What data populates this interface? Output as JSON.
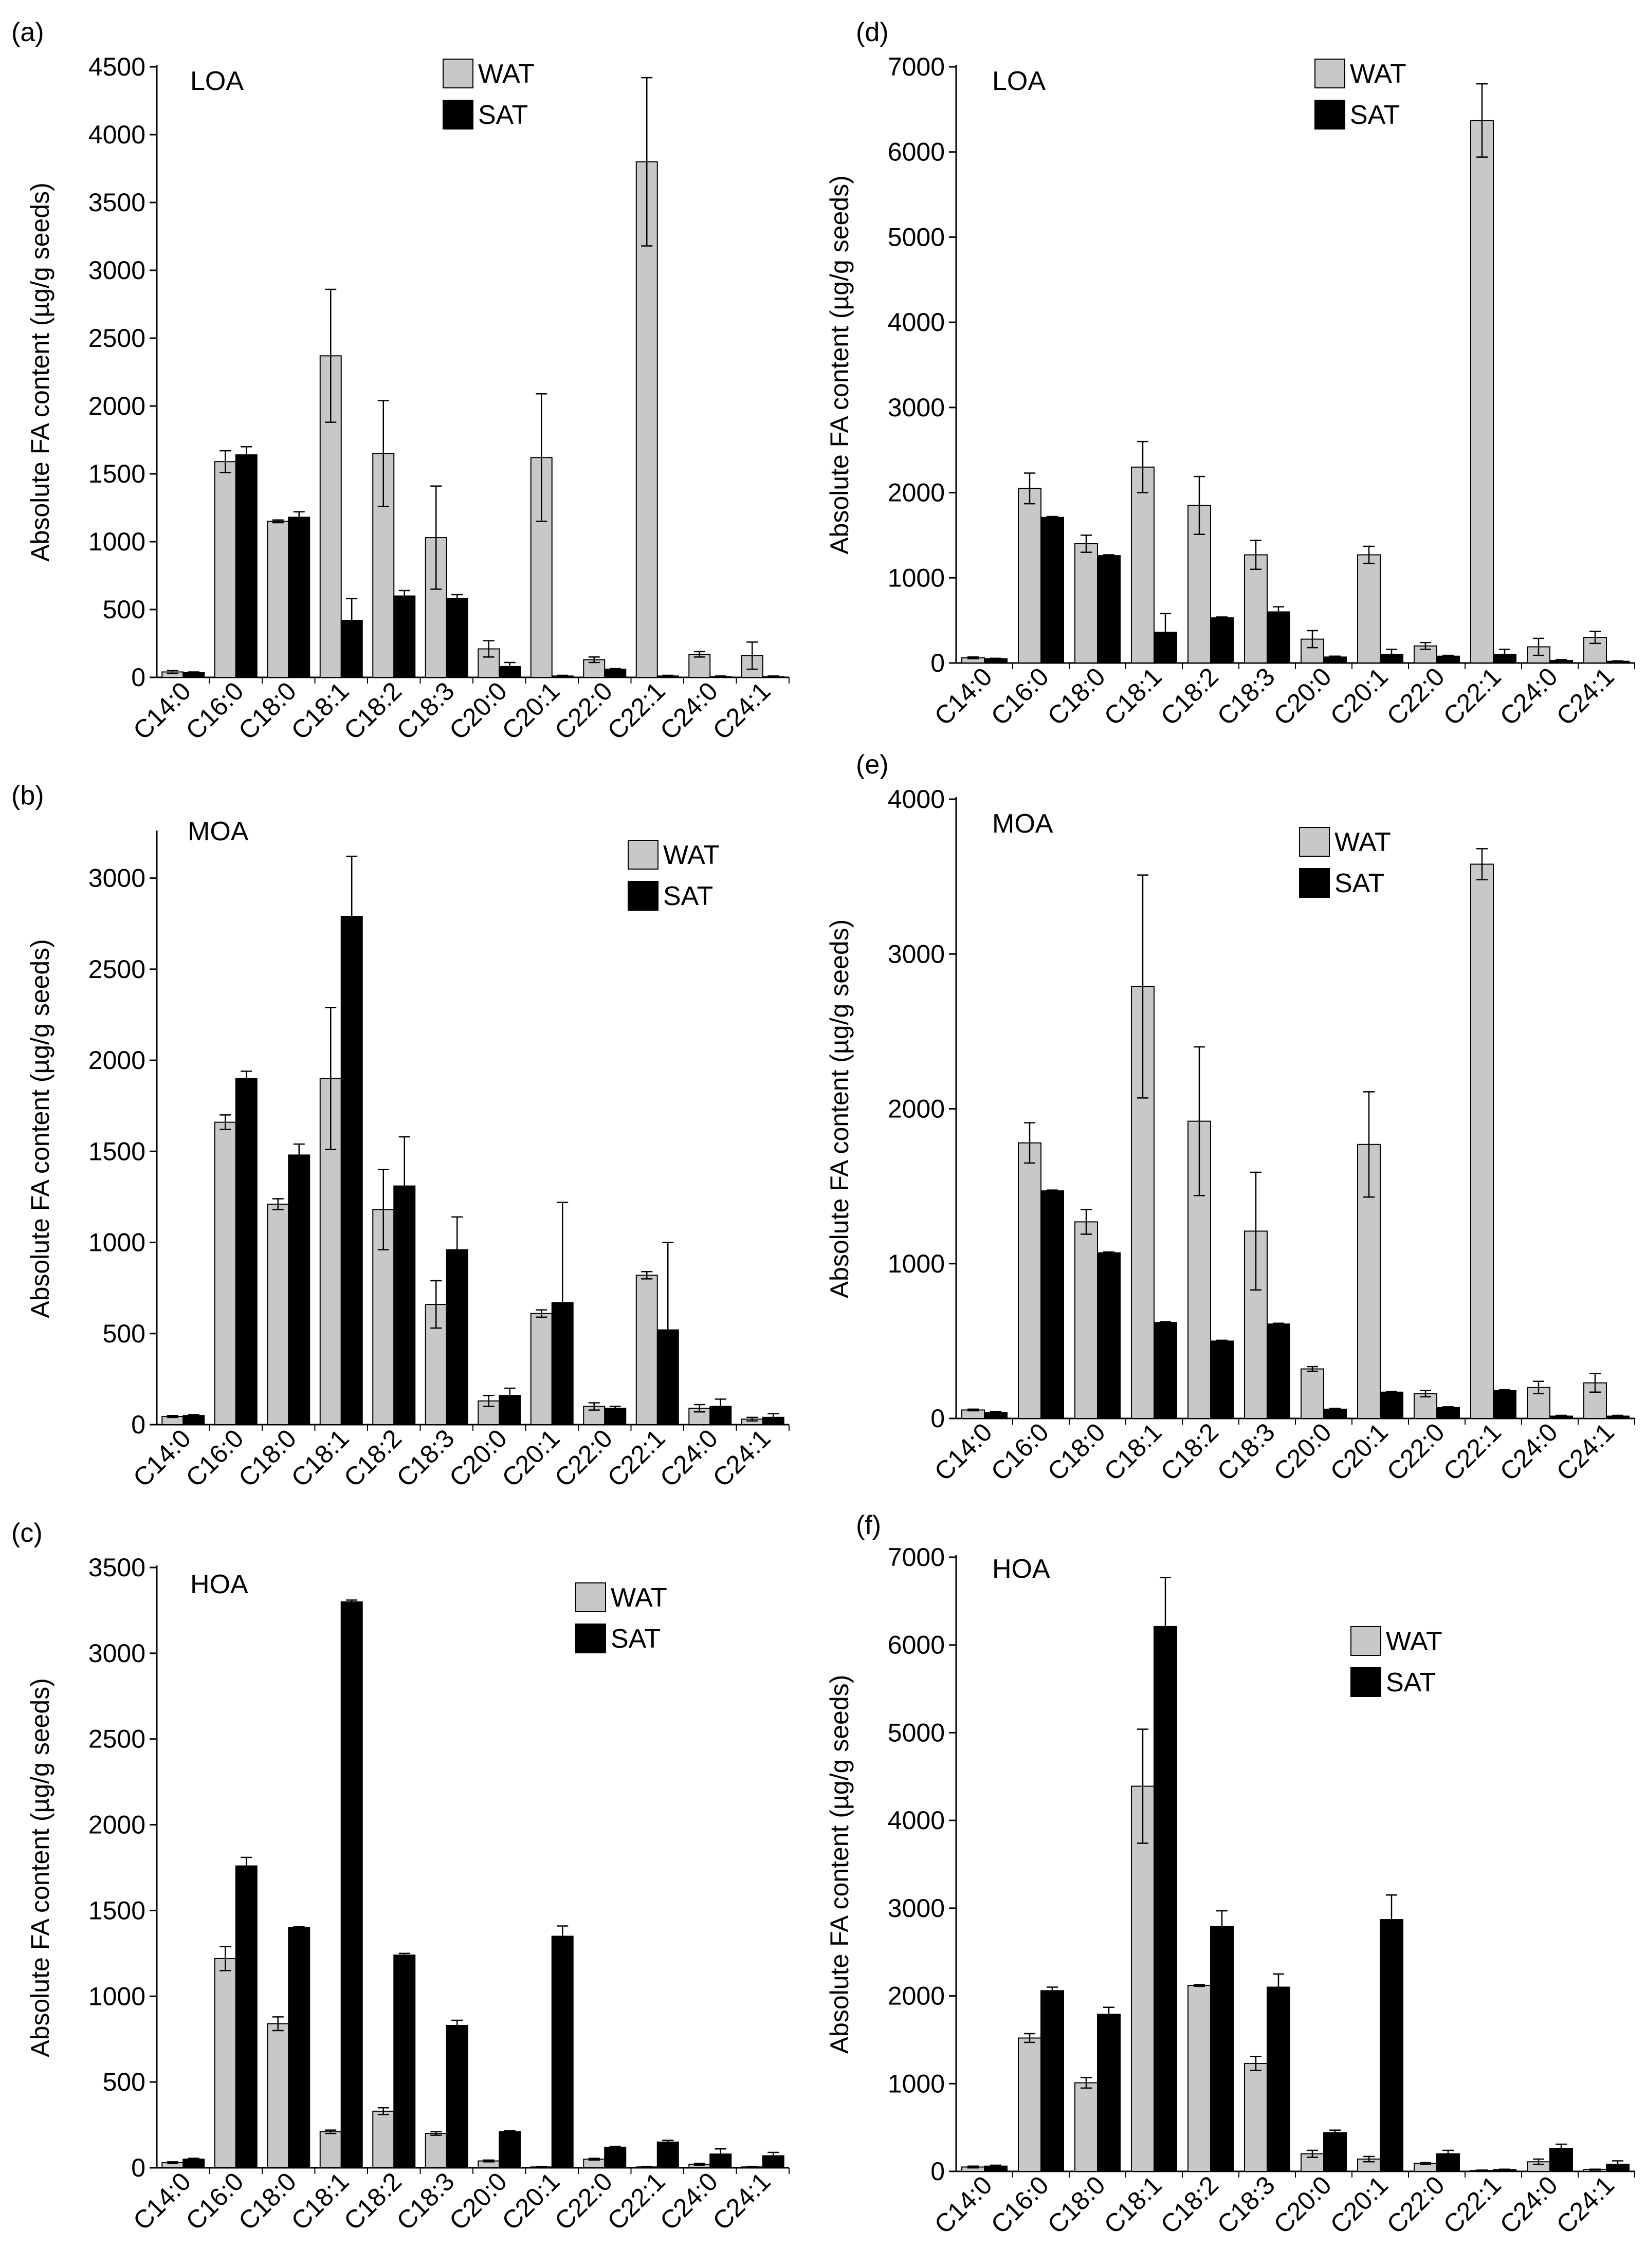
{
  "colors": {
    "WAT": "#c8c8c8",
    "SAT": "#000000",
    "axis": "#000000"
  },
  "chart_data": [
    {
      "panel": "(a)",
      "title": "LOA",
      "type": "bar",
      "ylabel": "Absolute FA content (µg/g seeds)",
      "ylim": [
        0,
        4500
      ],
      "yticks": [
        0,
        500,
        1000,
        1500,
        2000,
        2500,
        3000,
        3500,
        4000,
        4500
      ],
      "categories": [
        "C14:0",
        "C16:0",
        "C18:0",
        "C18:1",
        "C18:2",
        "C18:3",
        "C20:0",
        "C20:1",
        "C22:0",
        "C22:1",
        "C24:0",
        "C24:1"
      ],
      "legend": [
        "WAT",
        "SAT"
      ],
      "series": [
        {
          "name": "WAT",
          "values": [
            40,
            1590,
            1150,
            2370,
            1650,
            1030,
            210,
            1620,
            130,
            3800,
            170,
            160
          ],
          "errors": [
            10,
            80,
            10,
            490,
            390,
            380,
            60,
            470,
            20,
            620,
            20,
            100
          ]
        },
        {
          "name": "SAT",
          "values": [
            35,
            1640,
            1180,
            420,
            600,
            580,
            80,
            10,
            60,
            10,
            5,
            5
          ],
          "errors": [
            5,
            60,
            40,
            160,
            40,
            30,
            30,
            5,
            5,
            5,
            5,
            5
          ]
        }
      ]
    },
    {
      "panel": "(b)",
      "title": "MOA",
      "type": "bar",
      "ylabel": "Absolute FA content (µg/g seeds)",
      "ylim": [
        0,
        3250
      ],
      "yticks": [
        0,
        500,
        1000,
        1500,
        2000,
        2500,
        3000
      ],
      "categories": [
        "C14:0",
        "C16:0",
        "C18:0",
        "C18:1",
        "C18:2",
        "C18:3",
        "C20:0",
        "C20:1",
        "C22:0",
        "C22:1",
        "C24:0",
        "C24:1"
      ],
      "legend": [
        "WAT",
        "SAT"
      ],
      "series": [
        {
          "name": "WAT",
          "values": [
            45,
            1660,
            1210,
            1900,
            1180,
            660,
            130,
            610,
            100,
            820,
            90,
            30
          ],
          "errors": [
            5,
            40,
            30,
            390,
            220,
            130,
            30,
            20,
            20,
            20,
            20,
            10
          ]
        },
        {
          "name": "SAT",
          "values": [
            50,
            1900,
            1480,
            2790,
            1310,
            960,
            160,
            670,
            90,
            520,
            100,
            40
          ],
          "errors": [
            5,
            40,
            60,
            330,
            270,
            180,
            40,
            550,
            10,
            480,
            40,
            20
          ]
        }
      ]
    },
    {
      "panel": "(c)",
      "title": "HOA",
      "type": "bar",
      "ylabel": "Absolute FA content (µg/g seeds)",
      "ylim": [
        0,
        3500
      ],
      "yticks": [
        0,
        500,
        1000,
        1500,
        2000,
        2500,
        3000,
        3500
      ],
      "categories": [
        "C14:0",
        "C16:0",
        "C18:0",
        "C18:1",
        "C18:2",
        "C18:3",
        "C20:0",
        "C20:1",
        "C22:0",
        "C22:1",
        "C24:0",
        "C24:1"
      ],
      "legend": [
        "WAT",
        "SAT"
      ],
      "series": [
        {
          "name": "WAT",
          "values": [
            30,
            1220,
            840,
            210,
            330,
            200,
            40,
            5,
            50,
            5,
            20,
            5
          ],
          "errors": [
            5,
            70,
            40,
            10,
            20,
            10,
            5,
            2,
            5,
            2,
            5,
            2
          ]
        },
        {
          "name": "SAT",
          "values": [
            50,
            1760,
            1400,
            3300,
            1240,
            830,
            210,
            1350,
            120,
            150,
            80,
            70
          ],
          "errors": [
            5,
            50,
            5,
            10,
            10,
            30,
            5,
            60,
            5,
            10,
            30,
            20
          ]
        }
      ]
    },
    {
      "panel": "(d)",
      "title": "LOA",
      "type": "bar",
      "ylabel": "Absolute FA content (µg/g seeds)",
      "ylim": [
        0,
        7000
      ],
      "yticks": [
        0,
        1000,
        2000,
        3000,
        4000,
        5000,
        6000,
        7000
      ],
      "categories": [
        "C14:0",
        "C16:0",
        "C18:0",
        "C18:1",
        "C18:2",
        "C18:3",
        "C20:0",
        "C20:1",
        "C22:0",
        "C22:1",
        "C24:0",
        "C24:1"
      ],
      "legend": [
        "WAT",
        "SAT"
      ],
      "series": [
        {
          "name": "WAT",
          "values": [
            60,
            2050,
            1400,
            2300,
            1850,
            1270,
            280,
            1270,
            200,
            6370,
            190,
            300
          ],
          "errors": [
            10,
            180,
            100,
            300,
            340,
            170,
            100,
            100,
            40,
            430,
            100,
            70
          ]
        },
        {
          "name": "SAT",
          "values": [
            50,
            1710,
            1260,
            360,
            530,
            600,
            70,
            100,
            80,
            100,
            30,
            20
          ],
          "errors": [
            5,
            10,
            10,
            220,
            10,
            60,
            10,
            60,
            10,
            60,
            10,
            5
          ]
        }
      ]
    },
    {
      "panel": "(e)",
      "title": "MOA",
      "type": "bar",
      "ylabel": "Absolute FA content (µg/g seeds)",
      "ylim": [
        0,
        4000
      ],
      "yticks": [
        0,
        1000,
        2000,
        3000,
        4000
      ],
      "categories": [
        "C14:0",
        "C16:0",
        "C18:0",
        "C18:1",
        "C18:2",
        "C18:3",
        "C20:0",
        "C20:1",
        "C22:0",
        "C22:1",
        "C24:0",
        "C24:1"
      ],
      "legend": [
        "WAT",
        "SAT"
      ],
      "series": [
        {
          "name": "WAT",
          "values": [
            55,
            1780,
            1270,
            2790,
            1920,
            1210,
            320,
            1770,
            160,
            3580,
            200,
            230
          ],
          "errors": [
            5,
            130,
            80,
            720,
            480,
            380,
            15,
            340,
            20,
            100,
            40,
            60
          ]
        },
        {
          "name": "SAT",
          "values": [
            40,
            1470,
            1070,
            620,
            500,
            610,
            60,
            170,
            70,
            180,
            15,
            15
          ],
          "errors": [
            5,
            5,
            5,
            5,
            5,
            5,
            5,
            5,
            5,
            5,
            5,
            5
          ]
        }
      ]
    },
    {
      "panel": "(f)",
      "title": "HOA",
      "type": "bar",
      "ylabel": "Absolute FA content (µg/g seeds)",
      "ylim": [
        0,
        7000
      ],
      "yticks": [
        0,
        1000,
        2000,
        3000,
        4000,
        5000,
        6000,
        7000
      ],
      "categories": [
        "C14:0",
        "C16:0",
        "C18:0",
        "C18:1",
        "C18:2",
        "C18:3",
        "C20:0",
        "C20:1",
        "C22:0",
        "C22:1",
        "C24:0",
        "C24:1"
      ],
      "legend": [
        "WAT",
        "SAT"
      ],
      "series": [
        {
          "name": "WAT",
          "values": [
            50,
            1520,
            1010,
            4390,
            2120,
            1230,
            200,
            140,
            90,
            10,
            110,
            20
          ],
          "errors": [
            10,
            50,
            60,
            650,
            10,
            80,
            40,
            30,
            10,
            5,
            30,
            5
          ]
        },
        {
          "name": "SAT",
          "values": [
            60,
            2060,
            1790,
            6210,
            2790,
            2100,
            440,
            2870,
            200,
            20,
            260,
            80
          ],
          "errors": [
            10,
            40,
            80,
            560,
            180,
            150,
            30,
            280,
            40,
            5,
            50,
            40
          ]
        }
      ]
    }
  ]
}
